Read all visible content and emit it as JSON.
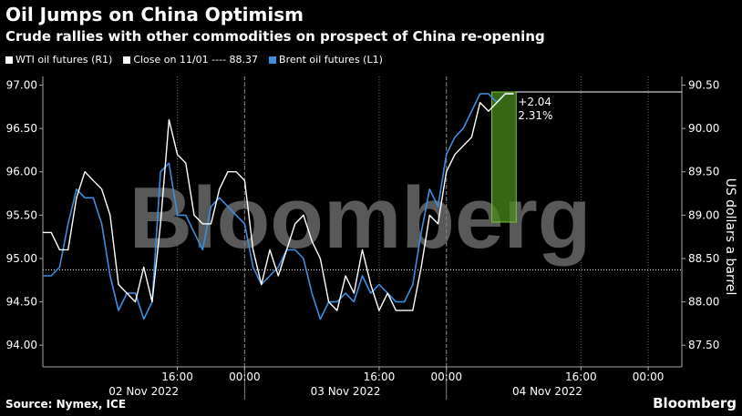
{
  "title": "Oil Jumps on China Optimism",
  "subtitle": "Crude rallies with other commodities on prospect of China re-opening",
  "legend": [
    {
      "label": "WTI oil futures (R1)",
      "color": "#ffffff"
    },
    {
      "label": "Close on 11/01 ---- 88.37",
      "color": "#ffffff"
    },
    {
      "label": "Brent oil futures (L1)",
      "color": "#3b8fe0"
    }
  ],
  "source": "Source: Nymex, ICE",
  "brand": "Bloomberg",
  "watermark": "Bloomberg",
  "chart_data": {
    "type": "line",
    "ylabel_right": "US dollars a barrel",
    "left_axis": {
      "min": 93.75,
      "max": 97.1,
      "ticks": [
        "94.00",
        "94.50",
        "95.00",
        "95.50",
        "96.00",
        "96.50",
        "97.00"
      ]
    },
    "right_axis": {
      "min": 87.25,
      "max": 90.6,
      "ticks": [
        "87.50",
        "88.00",
        "88.50",
        "89.00",
        "89.50",
        "90.00",
        "90.50"
      ]
    },
    "x_ticks": [
      "16:00",
      "00:00",
      "16:00",
      "00:00",
      "16:00",
      "00:00"
    ],
    "x_tick_hours": [
      16,
      24,
      40,
      48,
      64,
      72
    ],
    "day_labels": [
      {
        "label": "02 Nov 2022",
        "hour": 12
      },
      {
        "label": "03 Nov 2022",
        "hour": 36
      },
      {
        "label": "04 Nov 2022",
        "hour": 60
      }
    ],
    "day_separators": [
      24,
      48
    ],
    "x_range_hours": [
      0,
      76
    ],
    "reference_close": 88.37,
    "annotation": {
      "change": "+2.04",
      "pct": "2.31%",
      "start_hour": 53.4,
      "end_hour": 56.3
    },
    "series": [
      {
        "name": "WTI oil futures (R1)",
        "axis": "right",
        "hours": [
          0,
          1,
          2,
          3,
          4,
          5,
          6,
          7,
          8,
          9,
          10,
          11,
          12,
          13,
          14,
          15,
          16,
          17,
          18,
          19,
          20,
          21,
          22,
          23,
          24,
          25,
          26,
          27,
          28,
          29,
          30,
          31,
          32,
          33,
          34,
          35,
          36,
          37,
          38,
          39,
          40,
          41,
          42,
          43,
          44,
          45,
          46,
          47,
          48,
          49,
          50,
          51,
          52,
          53,
          54,
          55,
          56
        ],
        "values": [
          88.8,
          88.8,
          88.6,
          88.6,
          89.2,
          89.5,
          89.4,
          89.3,
          89.0,
          88.2,
          88.1,
          88.0,
          88.4,
          88.0,
          88.9,
          90.1,
          89.7,
          89.6,
          89.0,
          88.9,
          88.9,
          89.3,
          89.5,
          89.5,
          89.4,
          88.6,
          88.2,
          88.6,
          88.3,
          88.6,
          88.9,
          89.0,
          88.7,
          88.5,
          88.0,
          87.9,
          88.3,
          88.1,
          88.6,
          88.2,
          87.9,
          88.1,
          87.9,
          87.9,
          87.9,
          88.4,
          89.0,
          88.9,
          89.5,
          89.7,
          89.8,
          89.9,
          90.3,
          90.2,
          90.3,
          90.4,
          90.4
        ]
      },
      {
        "name": "Brent oil futures (L1)",
        "axis": "left",
        "hours": [
          0,
          1,
          2,
          3,
          4,
          5,
          6,
          7,
          8,
          9,
          10,
          11,
          12,
          13,
          14,
          15,
          16,
          17,
          18,
          19,
          20,
          21,
          22,
          23,
          24,
          25,
          26,
          27,
          28,
          29,
          30,
          31,
          32,
          33,
          34,
          35,
          36,
          37,
          38,
          39,
          40,
          41,
          42,
          43,
          44,
          45,
          46,
          47,
          48,
          49,
          50,
          51,
          52,
          53,
          54,
          55,
          56
        ],
        "values": [
          94.8,
          94.8,
          94.9,
          95.4,
          95.8,
          95.7,
          95.7,
          95.4,
          94.8,
          94.4,
          94.6,
          94.6,
          94.3,
          94.5,
          96.0,
          96.1,
          95.5,
          95.5,
          95.3,
          95.1,
          95.6,
          95.7,
          95.6,
          95.5,
          95.4,
          94.9,
          94.7,
          94.8,
          94.9,
          95.1,
          95.1,
          95.0,
          94.6,
          94.3,
          94.5,
          94.5,
          94.6,
          94.5,
          94.8,
          94.6,
          94.7,
          94.6,
          94.5,
          94.5,
          94.7,
          95.3,
          95.8,
          95.6,
          96.2,
          96.4,
          96.5,
          96.7,
          96.9,
          96.9,
          96.8,
          96.9,
          96.9
        ]
      }
    ]
  }
}
